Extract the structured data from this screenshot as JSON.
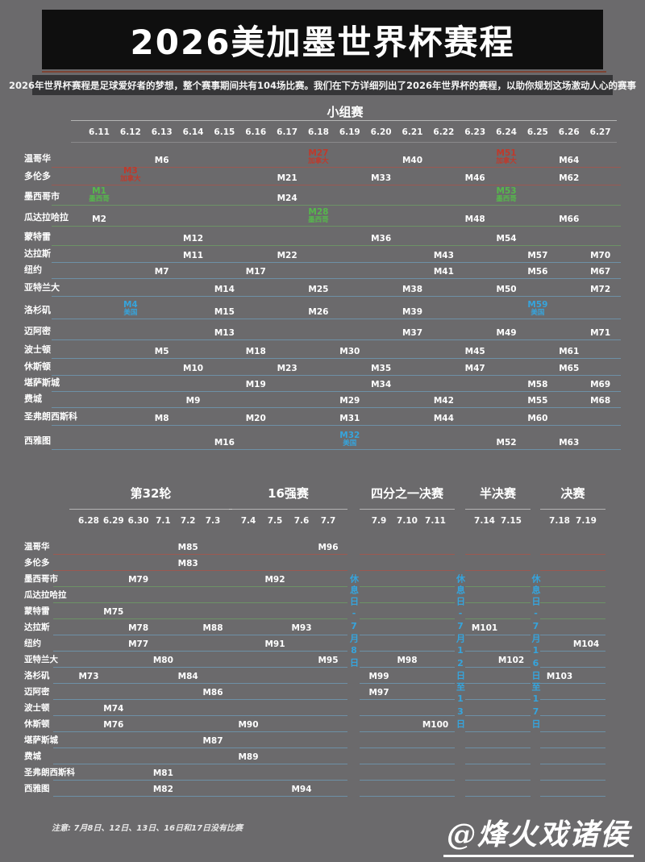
{
  "header": {
    "title": "2026美加墨世界杯赛程",
    "subtitle": "2026年世界杯赛程是足球爱好者的梦想，整个赛事期间共有104场比赛。我们在下方详细列出了2026年世界杯的赛程，以助你规划这场激动人心的赛事"
  },
  "footnote": "注意: 7月8日、12日、13日、16日和17日没有比赛",
  "watermark": "@烽火戏诸侯",
  "colors": {
    "background": "#6b6a6c",
    "banner": "#0f0f0f",
    "subtitle_bar": "#353537",
    "title_rule": "#7d4434",
    "canada_accent": "#c0392b",
    "mexico_accent": "#56b84c",
    "usa_accent": "#36a4dc",
    "rest_day_text": "#36a4dc"
  },
  "chart_data": {
    "type": "table",
    "title": "2026美加墨世界杯赛程",
    "group_stage": {
      "header": "小组赛",
      "dates": [
        "6.11",
        "6.12",
        "6.13",
        "6.14",
        "6.15",
        "6.16",
        "6.17",
        "6.18",
        "6.19",
        "6.20",
        "6.21",
        "6.22",
        "6.23",
        "6.24",
        "6.25",
        "6.26",
        "6.27"
      ],
      "rows": [
        {
          "city": "温哥华",
          "country": "canada",
          "matches": [
            {
              "m": "M6",
              "day": "6.13"
            },
            {
              "m": "M27",
              "day": "6.18",
              "tag": "加拿大",
              "flag": "canada"
            },
            {
              "m": "M40",
              "day": "6.21"
            },
            {
              "m": "M51",
              "day": "6.24",
              "tag": "加拿大",
              "flag": "canada"
            },
            {
              "m": "M64",
              "day": "6.26"
            }
          ]
        },
        {
          "city": "多伦多",
          "country": "canada",
          "matches": [
            {
              "m": "M3",
              "day": "6.12",
              "tag": "加拿大",
              "flag": "canada"
            },
            {
              "m": "M21",
              "day": "6.17"
            },
            {
              "m": "M33",
              "day": "6.20"
            },
            {
              "m": "M46",
              "day": "6.23"
            },
            {
              "m": "M62",
              "day": "6.26"
            }
          ]
        },
        {
          "city": "墨西哥市",
          "country": "mexico",
          "matches": [
            {
              "m": "M1",
              "day": "6.11",
              "tag": "墨西哥",
              "flag": "mexico"
            },
            {
              "m": "M24",
              "day": "6.17"
            },
            {
              "m": "M53",
              "day": "6.24",
              "tag": "墨西哥",
              "flag": "mexico"
            }
          ]
        },
        {
          "city": "瓜达拉哈拉",
          "country": "mexico",
          "matches": [
            {
              "m": "M2",
              "day": "6.11"
            },
            {
              "m": "M28",
              "day": "6.18",
              "tag": "墨西哥",
              "flag": "mexico"
            },
            {
              "m": "M48",
              "day": "6.23"
            },
            {
              "m": "M66",
              "day": "6.26"
            }
          ]
        },
        {
          "city": "蒙特雷",
          "country": "mexico",
          "matches": [
            {
              "m": "M12",
              "day": "6.14"
            },
            {
              "m": "M36",
              "day": "6.20"
            },
            {
              "m": "M54",
              "day": "6.24"
            }
          ]
        },
        {
          "city": "达拉斯",
          "country": "usa",
          "matches": [
            {
              "m": "M11",
              "day": "6.14"
            },
            {
              "m": "M22",
              "day": "6.17"
            },
            {
              "m": "M43",
              "day": "6.22"
            },
            {
              "m": "M57",
              "day": "6.25"
            },
            {
              "m": "M70",
              "day": "6.27"
            }
          ]
        },
        {
          "city": "纽约",
          "country": "usa",
          "matches": [
            {
              "m": "M7",
              "day": "6.13"
            },
            {
              "m": "M17",
              "day": "6.16"
            },
            {
              "m": "M41",
              "day": "6.22"
            },
            {
              "m": "M56",
              "day": "6.25"
            },
            {
              "m": "M67",
              "day": "6.27"
            }
          ]
        },
        {
          "city": "亚特兰大",
          "country": "usa",
          "matches": [
            {
              "m": "M14",
              "day": "6.15"
            },
            {
              "m": "M25",
              "day": "6.18"
            },
            {
              "m": "M38",
              "day": "6.21"
            },
            {
              "m": "M50",
              "day": "6.24"
            },
            {
              "m": "M72",
              "day": "6.27"
            }
          ]
        },
        {
          "city": "洛杉矶",
          "country": "usa",
          "matches": [
            {
              "m": "M4",
              "day": "6.12",
              "tag": "美国",
              "flag": "usa"
            },
            {
              "m": "M15",
              "day": "6.15"
            },
            {
              "m": "M26",
              "day": "6.18"
            },
            {
              "m": "M39",
              "day": "6.21"
            },
            {
              "m": "M59",
              "day": "6.25",
              "tag": "美国",
              "flag": "usa"
            }
          ]
        },
        {
          "city": "迈阿密",
          "country": "usa",
          "matches": [
            {
              "m": "M13",
              "day": "6.15"
            },
            {
              "m": "M37",
              "day": "6.21"
            },
            {
              "m": "M49",
              "day": "6.24"
            },
            {
              "m": "M71",
              "day": "6.27"
            }
          ]
        },
        {
          "city": "波士顿",
          "country": "usa",
          "matches": [
            {
              "m": "M5",
              "day": "6.13"
            },
            {
              "m": "M18",
              "day": "6.16"
            },
            {
              "m": "M30",
              "day": "6.19"
            },
            {
              "m": "M45",
              "day": "6.23"
            },
            {
              "m": "M61",
              "day": "6.26"
            }
          ]
        },
        {
          "city": "休斯顿",
          "country": "usa",
          "matches": [
            {
              "m": "M10",
              "day": "6.14"
            },
            {
              "m": "M23",
              "day": "6.17"
            },
            {
              "m": "M35",
              "day": "6.20"
            },
            {
              "m": "M47",
              "day": "6.23"
            },
            {
              "m": "M65",
              "day": "6.26"
            }
          ]
        },
        {
          "city": "堪萨斯城",
          "country": "usa",
          "matches": [
            {
              "m": "M19",
              "day": "6.16"
            },
            {
              "m": "M34",
              "day": "6.20"
            },
            {
              "m": "M58",
              "day": "6.25"
            },
            {
              "m": "M69",
              "day": "6.27"
            }
          ]
        },
        {
          "city": "费城",
          "country": "usa",
          "matches": [
            {
              "m": "M9",
              "day": "6.14"
            },
            {
              "m": "M29",
              "day": "6.19"
            },
            {
              "m": "M42",
              "day": "6.22"
            },
            {
              "m": "M55",
              "day": "6.25"
            },
            {
              "m": "M68",
              "day": "6.27"
            }
          ]
        },
        {
          "city": "圣弗朗西斯科",
          "country": "usa",
          "matches": [
            {
              "m": "M8",
              "day": "6.13"
            },
            {
              "m": "M20",
              "day": "6.16"
            },
            {
              "m": "M31",
              "day": "6.19"
            },
            {
              "m": "M44",
              "day": "6.22"
            },
            {
              "m": "M60",
              "day": "6.25"
            }
          ]
        },
        {
          "city": "西雅图",
          "country": "usa",
          "matches": [
            {
              "m": "M16",
              "day": "6.15"
            },
            {
              "m": "M32",
              "day": "6.19",
              "tag": "美国",
              "flag": "usa"
            },
            {
              "m": "M52",
              "day": "6.24"
            },
            {
              "m": "M63",
              "day": "6.26"
            }
          ]
        }
      ]
    },
    "knockout": {
      "rounds": [
        {
          "label": "第32轮",
          "dates": [
            "6.28",
            "6.29",
            "6.30",
            "7.1",
            "7.2",
            "7.3"
          ]
        },
        {
          "label": "16强赛",
          "dates": [
            "7.4",
            "7.5",
            "7.6",
            "7.7"
          ]
        },
        {
          "label": "四分之一决赛",
          "dates": [
            "7.9",
            "7.10",
            "7.11"
          ]
        },
        {
          "label": "半决赛",
          "dates": [
            "7.14",
            "7.15"
          ]
        },
        {
          "label": "决赛",
          "dates": [
            "7.18",
            "7.19"
          ]
        }
      ],
      "rest_days": [
        "休息日-7月8日",
        "休息日-7月12日至13日",
        "休息日-7月16日至17日"
      ],
      "rows": [
        {
          "city": "温哥华",
          "country": "canada",
          "matches": [
            {
              "m": "M85",
              "day": "7.2"
            },
            {
              "m": "M96",
              "day": "7.7"
            }
          ]
        },
        {
          "city": "多伦多",
          "country": "canada",
          "matches": [
            {
              "m": "M83",
              "day": "7.2"
            }
          ]
        },
        {
          "city": "墨西哥市",
          "country": "mexico",
          "matches": [
            {
              "m": "M79",
              "day": "6.30"
            },
            {
              "m": "M92",
              "day": "7.5"
            }
          ]
        },
        {
          "city": "瓜达拉哈拉",
          "country": "mexico",
          "matches": []
        },
        {
          "city": "蒙特雷",
          "country": "mexico",
          "matches": [
            {
              "m": "M75",
              "day": "6.29"
            }
          ]
        },
        {
          "city": "达拉斯",
          "country": "usa",
          "matches": [
            {
              "m": "M78",
              "day": "6.30"
            },
            {
              "m": "M88",
              "day": "7.3"
            },
            {
              "m": "M93",
              "day": "7.6"
            },
            {
              "m": "M101",
              "day": "7.14"
            }
          ]
        },
        {
          "city": "纽约",
          "country": "usa",
          "matches": [
            {
              "m": "M77",
              "day": "6.30"
            },
            {
              "m": "M91",
              "day": "7.5"
            },
            {
              "m": "M104",
              "day": "7.19"
            }
          ]
        },
        {
          "city": "亚特兰大",
          "country": "usa",
          "matches": [
            {
              "m": "M80",
              "day": "7.1"
            },
            {
              "m": "M95",
              "day": "7.7"
            },
            {
              "m": "M98",
              "day": "7.10"
            },
            {
              "m": "M102",
              "day": "7.15"
            }
          ]
        },
        {
          "city": "洛杉矶",
          "country": "usa",
          "matches": [
            {
              "m": "M73",
              "day": "6.28"
            },
            {
              "m": "M84",
              "day": "7.2"
            },
            {
              "m": "M99",
              "day": "7.9"
            },
            {
              "m": "M103",
              "day": "7.18"
            }
          ]
        },
        {
          "city": "迈阿密",
          "country": "usa",
          "matches": [
            {
              "m": "M86",
              "day": "7.3"
            },
            {
              "m": "M97",
              "day": "7.9"
            }
          ]
        },
        {
          "city": "波士顿",
          "country": "usa",
          "matches": [
            {
              "m": "M74",
              "day": "6.29"
            }
          ]
        },
        {
          "city": "休斯顿",
          "country": "usa",
          "matches": [
            {
              "m": "M76",
              "day": "6.29"
            },
            {
              "m": "M90",
              "day": "7.4"
            },
            {
              "m": "M100",
              "day": "7.11"
            }
          ]
        },
        {
          "city": "堪萨斯城",
          "country": "usa",
          "matches": [
            {
              "m": "M87",
              "day": "7.3"
            }
          ]
        },
        {
          "city": "费城",
          "country": "usa",
          "matches": [
            {
              "m": "M89",
              "day": "7.4"
            }
          ]
        },
        {
          "city": "圣弗朗西斯科",
          "country": "usa",
          "matches": [
            {
              "m": "M81",
              "day": "7.1"
            }
          ]
        },
        {
          "city": "西雅图",
          "country": "usa",
          "matches": [
            {
              "m": "M82",
              "day": "7.1"
            },
            {
              "m": "M94",
              "day": "7.6"
            }
          ]
        }
      ]
    }
  }
}
